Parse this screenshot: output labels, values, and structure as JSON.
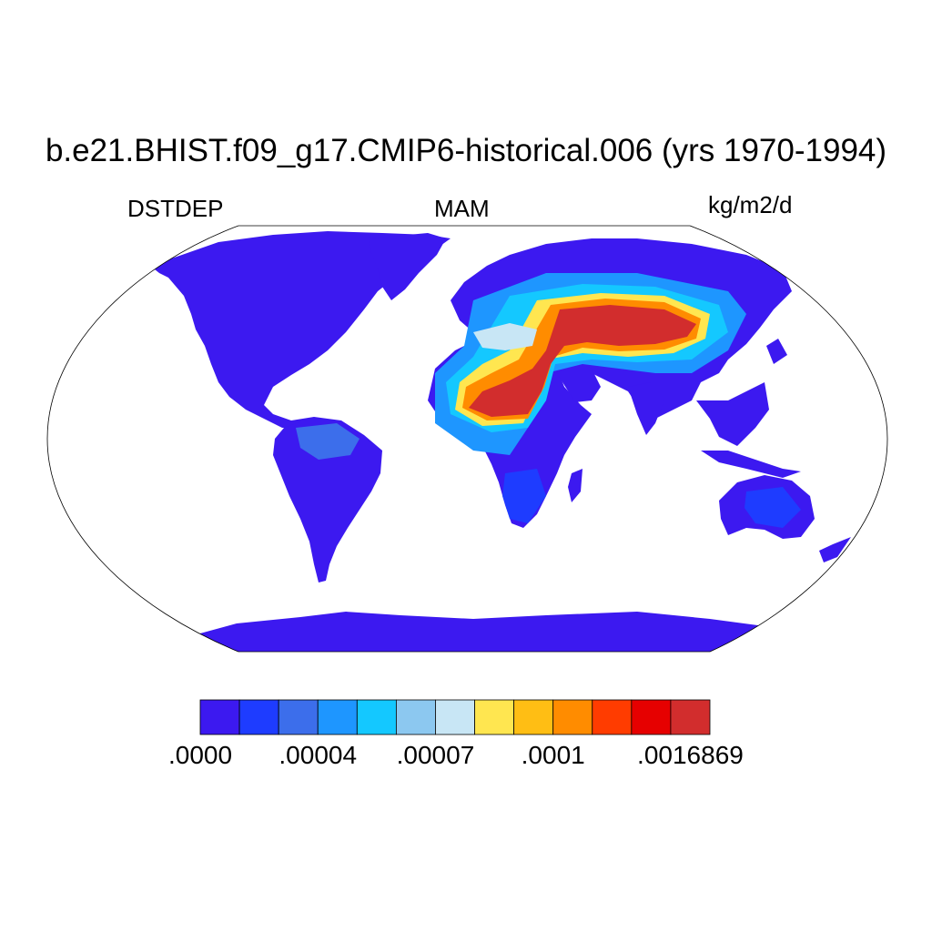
{
  "title": "b.e21.BHIST.f09_g17.CMIP6-historical.006 (yrs 1970-1994)",
  "variable": "DSTDEP",
  "season": "MAM",
  "units": "kg/m2/d",
  "colorbar": {
    "colors": [
      "#3c19f0",
      "#1e3cff",
      "#3c6eeb",
      "#1e96ff",
      "#14c8ff",
      "#8cc8f0",
      "#c8e6f5",
      "#ffe650",
      "#ffbe14",
      "#ff8c00",
      "#ff3c00",
      "#e60000",
      "#d22d2d"
    ],
    "labels": [
      ".0000",
      ".00004",
      ".00007",
      ".0001",
      ".0016869"
    ],
    "label_boundary_index": [
      0,
      3,
      6,
      9,
      12
    ]
  },
  "map": {
    "projection": "Robinson",
    "land_color": "#3c19f0",
    "ocean_color": "#ffffff"
  }
}
